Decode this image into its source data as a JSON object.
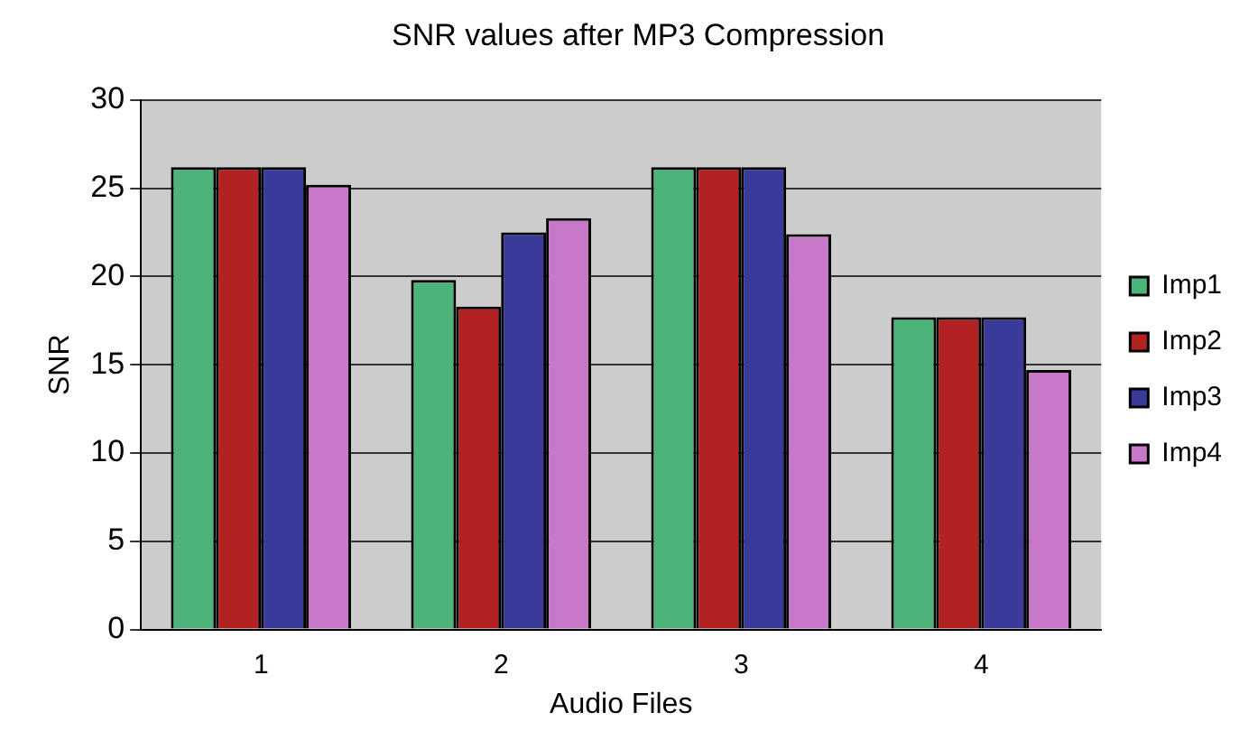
{
  "chart_data": {
    "type": "bar",
    "title": "SNR values after MP3 Compression",
    "xlabel": "Audio Files",
    "ylabel": "SNR",
    "categories": [
      "1",
      "2",
      "3",
      "4"
    ],
    "series": [
      {
        "name": "Imp1",
        "color": "#4cb37a",
        "values": [
          26.2,
          19.8,
          26.2,
          17.7
        ]
      },
      {
        "name": "Imp2",
        "color": "#b22222",
        "values": [
          26.2,
          18.3,
          26.2,
          17.7
        ]
      },
      {
        "name": "Imp3",
        "color": "#3a3a9a",
        "values": [
          26.2,
          22.5,
          26.2,
          17.7
        ]
      },
      {
        "name": "Imp4",
        "color": "#c878c8",
        "values": [
          25.2,
          23.3,
          22.4,
          14.7
        ]
      }
    ],
    "ylim": [
      0,
      30
    ],
    "yticks": [
      0,
      5,
      10,
      15,
      20,
      25,
      30
    ],
    "grid": "y",
    "legend": "right"
  }
}
